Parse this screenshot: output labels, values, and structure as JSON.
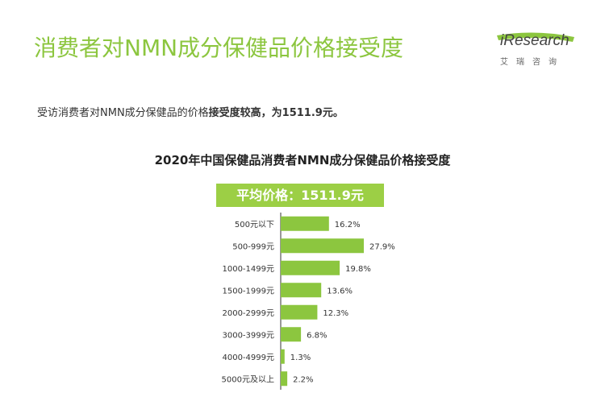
{
  "header": {
    "title": "消费者对NMN成分保健品价格接受度",
    "logo_text": "iResearch",
    "logo_sub": "艾瑞咨询"
  },
  "summary": {
    "prefix": "受访消费者对NMN成分保健品的价格",
    "highlight": "接受度较高，为1511.9元。"
  },
  "banner": {
    "label": "平均价格：1511.9元"
  },
  "colors": {
    "accent": "#8cc63f",
    "bar": "#8cc63f",
    "banner": "#9ccf45"
  },
  "chart_data": {
    "type": "bar",
    "orientation": "horizontal",
    "title": "2020年中国保健品消费者NMN成分保健品价格接受度",
    "categories": [
      "500元以下",
      "500-999元",
      "1000-1499元",
      "1500-1999元",
      "2000-2999元",
      "3000-3999元",
      "4000-4999元",
      "5000元及以上"
    ],
    "values": [
      16.2,
      27.9,
      19.8,
      13.6,
      12.3,
      6.8,
      1.3,
      2.2
    ],
    "value_labels": [
      "16.2%",
      "27.9%",
      "19.8%",
      "13.6%",
      "12.3%",
      "6.8%",
      "1.3%",
      "2.2%"
    ],
    "unit": "%"
  }
}
